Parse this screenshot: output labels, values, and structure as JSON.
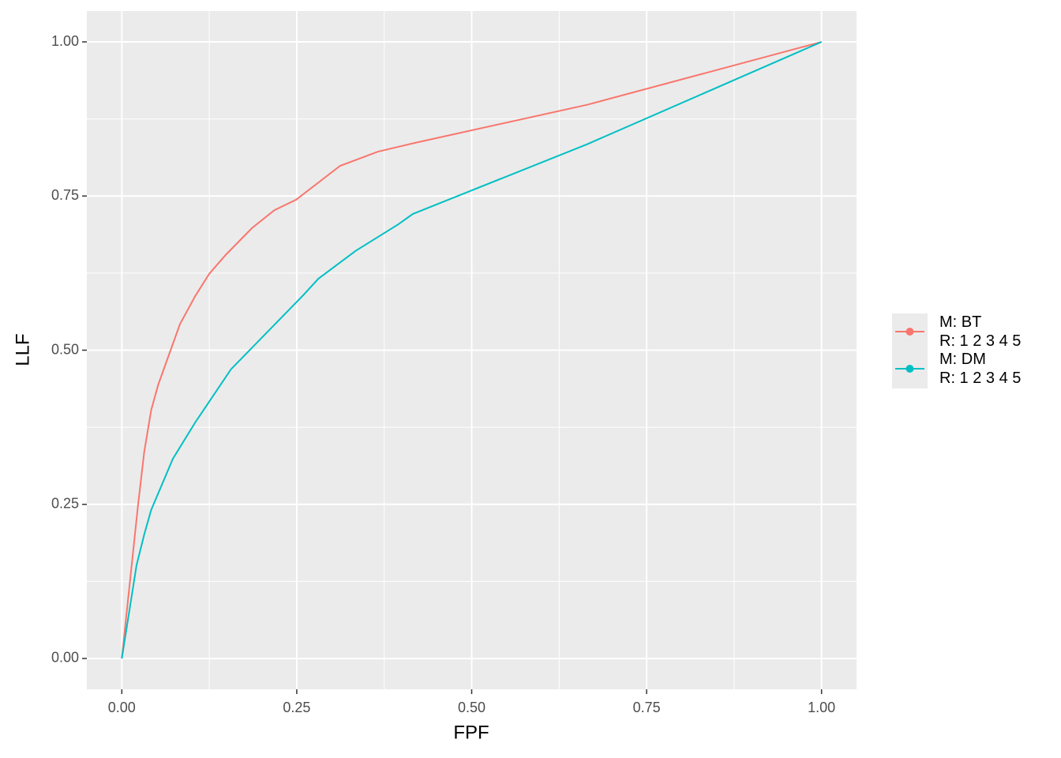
{
  "chart_data": {
    "type": "line",
    "x_label": "FPF",
    "y_label": "LLF",
    "xlim": [
      -0.05,
      1.05
    ],
    "ylim": [
      -0.05,
      1.05
    ],
    "xticks": [
      {
        "value": 0,
        "label": "0.00"
      },
      {
        "value": 0.25,
        "label": "0.25"
      },
      {
        "value": 0.5,
        "label": "0.50"
      },
      {
        "value": 0.75,
        "label": "0.75"
      },
      {
        "value": 1,
        "label": "1.00"
      }
    ],
    "yticks": [
      {
        "value": 0,
        "label": "0.00"
      },
      {
        "value": 0.25,
        "label": "0.25"
      },
      {
        "value": 0.5,
        "label": "0.50"
      },
      {
        "value": 0.75,
        "label": "0.75"
      },
      {
        "value": 1,
        "label": "1.00"
      }
    ],
    "grid": true,
    "legend_position": "right",
    "series": [
      {
        "name": "M: BT\nR: 1 2 3 4 5",
        "color": "#F8766D",
        "x": [
          0,
          0.023,
          0.032,
          0.042,
          0.052,
          0.083,
          0.105,
          0.125,
          0.148,
          0.186,
          0.218,
          0.249,
          0.312,
          0.366,
          0.418,
          0.665,
          1
        ],
        "values": [
          0,
          0.247,
          0.335,
          0.403,
          0.444,
          0.542,
          0.588,
          0.624,
          0.654,
          0.698,
          0.727,
          0.744,
          0.799,
          0.822,
          0.836,
          0.898,
          1
        ]
      },
      {
        "name": "M: DM\nR: 1 2 3 4 5",
        "color": "#00BFC4",
        "x": [
          0,
          0.021,
          0.032,
          0.042,
          0.073,
          0.105,
          0.156,
          0.26,
          0.281,
          0.334,
          0.395,
          0.416,
          0.665,
          1
        ],
        "values": [
          0,
          0.151,
          0.201,
          0.241,
          0.324,
          0.383,
          0.469,
          0.59,
          0.616,
          0.661,
          0.704,
          0.721,
          0.834,
          1
        ]
      }
    ]
  }
}
